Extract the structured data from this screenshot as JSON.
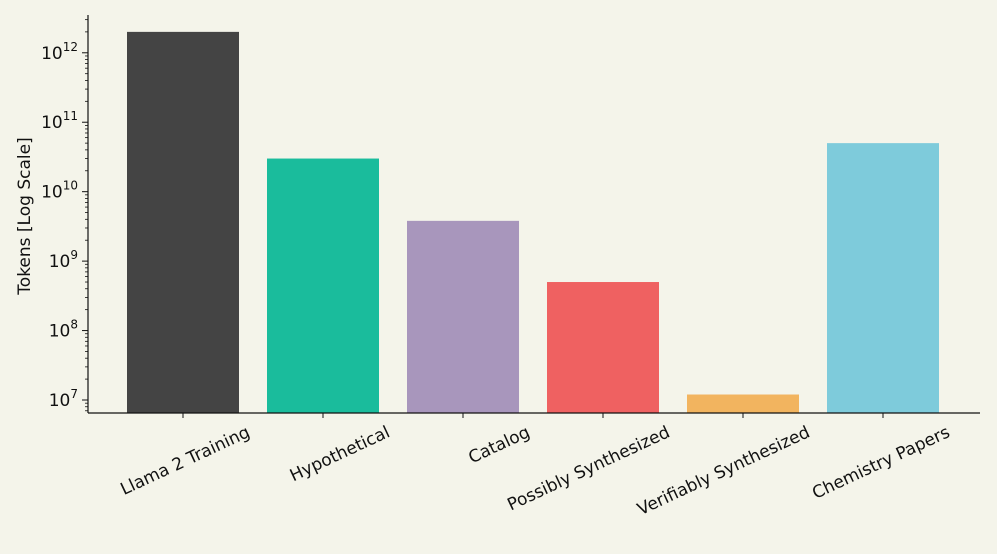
{
  "chart_data": {
    "type": "bar",
    "title": "",
    "xlabel": "",
    "ylabel": "Tokens [Log Scale]",
    "yscale": "log",
    "ylim": [
      6500000,
      3500000000000
    ],
    "grid": false,
    "legend": "none",
    "categories": [
      "Llama 2 Training",
      "Hypothetical",
      "Catalog",
      "Possibly Synthesized",
      "Verifiably Synthesized",
      "Chemistry Papers"
    ],
    "values": [
      2000000000000,
      30000000000,
      3800000000,
      500000000,
      12000000,
      50000000000
    ],
    "colors": [
      "#444444",
      "#1abc9c",
      "#a896bc",
      "#ef6161",
      "#f2b45f",
      "#7ecbdb"
    ],
    "yticks": [
      {
        "value": 10000000,
        "base": "10",
        "exp": "7"
      },
      {
        "value": 100000000,
        "base": "10",
        "exp": "8"
      },
      {
        "value": 1000000000,
        "base": "10",
        "exp": "9"
      },
      {
        "value": 10000000000,
        "base": "10",
        "exp": "10"
      },
      {
        "value": 100000000000,
        "base": "10",
        "exp": "11"
      },
      {
        "value": 1000000000000,
        "base": "10",
        "exp": "12"
      }
    ]
  }
}
